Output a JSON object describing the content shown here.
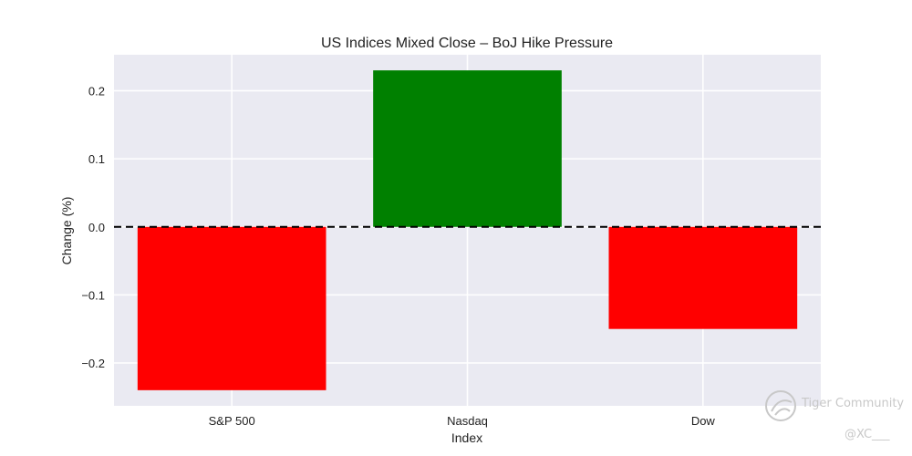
{
  "chart_data": {
    "type": "bar",
    "title": "US Indices Mixed Close – BoJ Hike Pressure",
    "xlabel": "Index",
    "ylabel": "Change (%)",
    "categories": [
      "S&P 500",
      "Nasdaq",
      "Dow"
    ],
    "values": [
      -0.24,
      0.23,
      -0.15
    ],
    "bar_colors": [
      "#ff0000",
      "#008000",
      "#ff0000"
    ],
    "ylim": [
      -0.263,
      0.253
    ],
    "yticks": [
      -0.2,
      -0.1,
      0.0,
      0.1,
      0.2
    ],
    "ytick_labels": [
      "−0.2",
      "−0.1",
      "0.0",
      "0.1",
      "0.2"
    ],
    "reference_line": {
      "y": 0,
      "style": "dashed",
      "color": "#000000"
    },
    "grid": true,
    "background": "#eaeaf2"
  },
  "watermark": {
    "brand": "Tiger Community",
    "user": "@XC___",
    "icon": "tiger-community-logo-icon"
  }
}
